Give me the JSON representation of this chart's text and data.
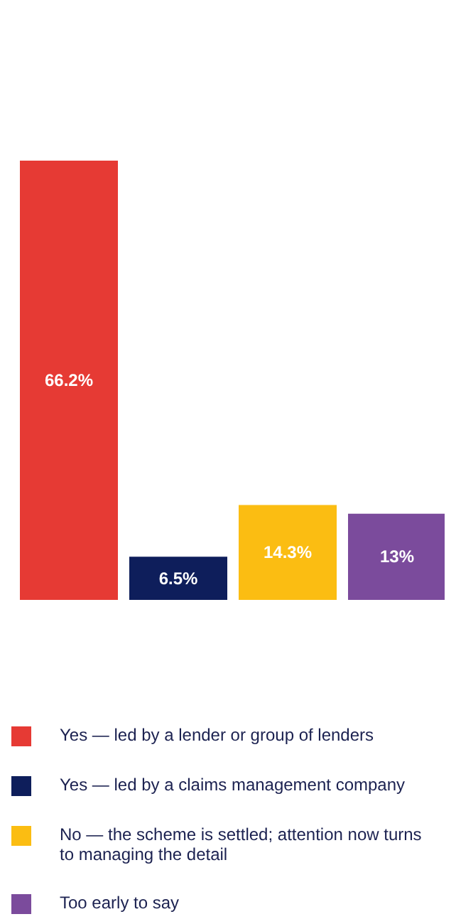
{
  "chart_data": {
    "type": "bar",
    "categories": [
      null
    ],
    "legend": "bottom left",
    "series": [
      {
        "name": "Yes — led by a lender or group of lenders",
        "color": "#e63a34",
        "values": [
          66.2
        ],
        "value_labels": [
          "66.2%"
        ]
      },
      {
        "name": "Yes — led by a claims management company",
        "color": "#0e1e5b",
        "values": [
          6.5
        ],
        "value_labels": [
          "6.5%"
        ]
      },
      {
        "name": "No — the scheme is settled; attention now turns to managing the detail",
        "color": "#fbbd12",
        "values": [
          14.3
        ],
        "value_labels": [
          "14.3%"
        ]
      },
      {
        "name": "Too early to say",
        "color": "#7b4b9c",
        "values": [
          13
        ],
        "value_labels": [
          "13%"
        ]
      }
    ]
  }
}
